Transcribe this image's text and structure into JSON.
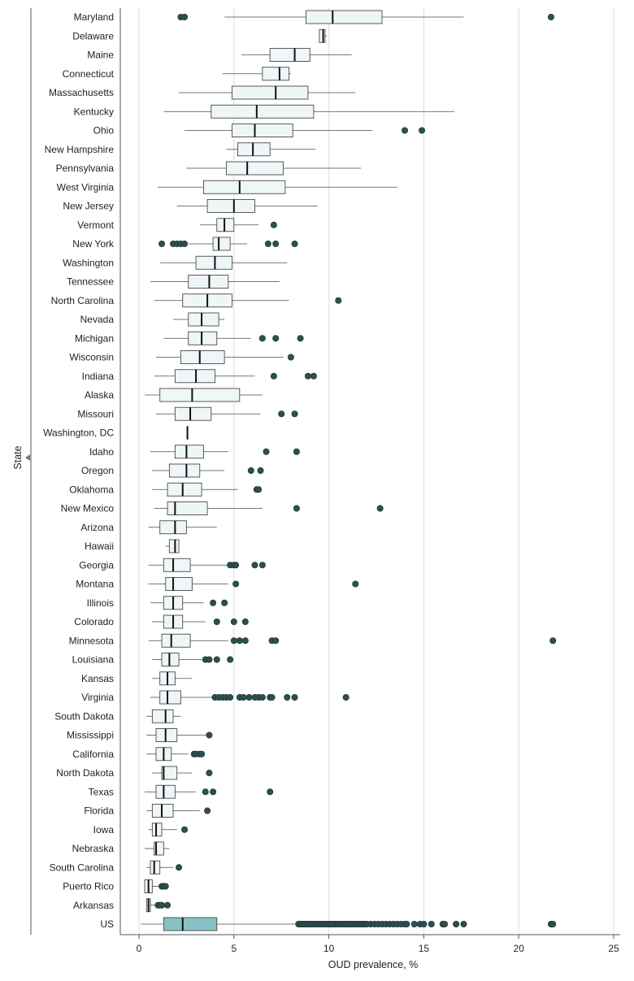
{
  "chart_data": {
    "type": "boxplot",
    "orientation": "horizontal",
    "xlabel": "OUD prevalence, %",
    "ylabel": "State",
    "xlim": [
      0,
      25
    ],
    "xticks": [
      0,
      5,
      10,
      15,
      20,
      25
    ],
    "grid": "vertical",
    "colors": {
      "box": "#eef6f7",
      "box_highlight": "#86c2c4",
      "outlier": "#2e4f4f",
      "stroke": "#4a4a4a"
    },
    "rows": [
      {
        "state": "Maryland",
        "wl": 4.5,
        "q1": 8.8,
        "median": 10.2,
        "q3": 12.8,
        "wh": 17.1,
        "outliers": [
          2.2,
          2.4,
          21.7
        ]
      },
      {
        "state": "Delaware",
        "wl": 9.5,
        "q1": 9.5,
        "median": 9.7,
        "q3": 9.8,
        "wh": 9.9,
        "outliers": []
      },
      {
        "state": "Maine",
        "wl": 5.4,
        "q1": 6.9,
        "median": 8.2,
        "q3": 9.0,
        "wh": 11.2,
        "outliers": []
      },
      {
        "state": "Connecticut",
        "wl": 4.4,
        "q1": 6.5,
        "median": 7.4,
        "q3": 7.9,
        "wh": 8.0,
        "outliers": []
      },
      {
        "state": "Massachusetts",
        "wl": 2.1,
        "q1": 4.9,
        "median": 7.2,
        "q3": 8.9,
        "wh": 11.4,
        "outliers": []
      },
      {
        "state": "Kentucky",
        "wl": 1.3,
        "q1": 3.8,
        "median": 6.2,
        "q3": 9.2,
        "wh": 16.6,
        "outliers": []
      },
      {
        "state": "Ohio",
        "wl": 2.4,
        "q1": 4.9,
        "median": 6.1,
        "q3": 8.1,
        "wh": 12.3,
        "outliers": [
          14.0,
          14.9
        ]
      },
      {
        "state": "New Hampshire",
        "wl": 4.6,
        "q1": 5.2,
        "median": 6.0,
        "q3": 6.9,
        "wh": 9.3,
        "outliers": []
      },
      {
        "state": "Pennsylvania",
        "wl": 2.5,
        "q1": 4.6,
        "median": 5.7,
        "q3": 7.6,
        "wh": 11.7,
        "outliers": []
      },
      {
        "state": "West Virginia",
        "wl": 1.0,
        "q1": 3.4,
        "median": 5.3,
        "q3": 7.7,
        "wh": 13.6,
        "outliers": []
      },
      {
        "state": "New Jersey",
        "wl": 2.0,
        "q1": 3.6,
        "median": 5.0,
        "q3": 6.1,
        "wh": 9.4,
        "outliers": []
      },
      {
        "state": "Vermont",
        "wl": 3.2,
        "q1": 4.1,
        "median": 4.5,
        "q3": 5.0,
        "wh": 6.3,
        "outliers": [
          7.1
        ]
      },
      {
        "state": "New York",
        "wl": 2.6,
        "q1": 3.9,
        "median": 4.2,
        "q3": 4.8,
        "wh": 5.7,
        "outliers": [
          1.2,
          1.8,
          2.0,
          2.2,
          2.4,
          6.8,
          7.2,
          8.2
        ]
      },
      {
        "state": "Washington",
        "wl": 1.1,
        "q1": 3.0,
        "median": 4.0,
        "q3": 4.9,
        "wh": 7.8,
        "outliers": []
      },
      {
        "state": "Tennessee",
        "wl": 0.6,
        "q1": 2.6,
        "median": 3.7,
        "q3": 4.7,
        "wh": 7.4,
        "outliers": []
      },
      {
        "state": "North Carolina",
        "wl": 0.8,
        "q1": 2.3,
        "median": 3.6,
        "q3": 4.9,
        "wh": 7.9,
        "outliers": [
          10.5
        ]
      },
      {
        "state": "Nevada",
        "wl": 1.8,
        "q1": 2.6,
        "median": 3.3,
        "q3": 4.2,
        "wh": 4.5,
        "outliers": []
      },
      {
        "state": "Michigan",
        "wl": 1.3,
        "q1": 2.6,
        "median": 3.3,
        "q3": 4.1,
        "wh": 5.9,
        "outliers": [
          6.5,
          7.2,
          8.5
        ]
      },
      {
        "state": "Wisconsin",
        "wl": 0.9,
        "q1": 2.2,
        "median": 3.2,
        "q3": 4.5,
        "wh": 7.6,
        "outliers": [
          8.0
        ]
      },
      {
        "state": "Indiana",
        "wl": 0.8,
        "q1": 1.9,
        "median": 3.0,
        "q3": 4.0,
        "wh": 6.1,
        "outliers": [
          7.1,
          8.9,
          9.2
        ]
      },
      {
        "state": "Alaska",
        "wl": 0.3,
        "q1": 1.1,
        "median": 2.8,
        "q3": 5.3,
        "wh": 6.5,
        "outliers": []
      },
      {
        "state": "Missouri",
        "wl": 0.9,
        "q1": 1.9,
        "median": 2.7,
        "q3": 3.8,
        "wh": 6.4,
        "outliers": [
          7.5,
          8.2
        ]
      },
      {
        "state": "Washington, DC",
        "wl": 2.55,
        "q1": 2.55,
        "median": 2.55,
        "q3": 2.55,
        "wh": 2.55,
        "outliers": []
      },
      {
        "state": "Idaho",
        "wl": 0.6,
        "q1": 1.9,
        "median": 2.5,
        "q3": 3.4,
        "wh": 4.7,
        "outliers": [
          6.7,
          8.3
        ]
      },
      {
        "state": "Oregon",
        "wl": 0.7,
        "q1": 1.6,
        "median": 2.5,
        "q3": 3.2,
        "wh": 4.5,
        "outliers": [
          5.9,
          6.4
        ]
      },
      {
        "state": "Oklahoma",
        "wl": 0.7,
        "q1": 1.5,
        "median": 2.3,
        "q3": 3.3,
        "wh": 5.2,
        "outliers": [
          6.2,
          6.3
        ]
      },
      {
        "state": "New Mexico",
        "wl": 0.8,
        "q1": 1.5,
        "median": 1.9,
        "q3": 3.6,
        "wh": 6.5,
        "outliers": [
          8.3,
          12.7
        ]
      },
      {
        "state": "Arizona",
        "wl": 0.5,
        "q1": 1.1,
        "median": 1.9,
        "q3": 2.5,
        "wh": 4.1,
        "outliers": []
      },
      {
        "state": "Hawaii",
        "wl": 1.4,
        "q1": 1.6,
        "median": 1.9,
        "q3": 2.1,
        "wh": 2.1,
        "outliers": []
      },
      {
        "state": "Georgia",
        "wl": 0.5,
        "q1": 1.3,
        "median": 1.8,
        "q3": 2.7,
        "wh": 4.7,
        "outliers": [
          4.8,
          5.0,
          5.1,
          6.1,
          6.5
        ]
      },
      {
        "state": "Montana",
        "wl": 0.5,
        "q1": 1.4,
        "median": 1.8,
        "q3": 2.8,
        "wh": 4.7,
        "outliers": [
          5.1,
          11.4
        ]
      },
      {
        "state": "Illinois",
        "wl": 0.6,
        "q1": 1.3,
        "median": 1.8,
        "q3": 2.3,
        "wh": 3.4,
        "outliers": [
          3.9,
          4.5
        ]
      },
      {
        "state": "Colorado",
        "wl": 0.7,
        "q1": 1.3,
        "median": 1.8,
        "q3": 2.3,
        "wh": 3.5,
        "outliers": [
          4.1,
          5.0,
          5.6
        ]
      },
      {
        "state": "Minnesota",
        "wl": 0.5,
        "q1": 1.2,
        "median": 1.7,
        "q3": 2.7,
        "wh": 4.7,
        "outliers": [
          5.0,
          5.3,
          5.6,
          7.0,
          7.2,
          21.8
        ]
      },
      {
        "state": "Louisiana",
        "wl": 0.7,
        "q1": 1.2,
        "median": 1.6,
        "q3": 2.1,
        "wh": 3.3,
        "outliers": [
          3.5,
          3.7,
          4.1,
          4.8
        ]
      },
      {
        "state": "Kansas",
        "wl": 0.7,
        "q1": 1.1,
        "median": 1.5,
        "q3": 1.9,
        "wh": 2.8,
        "outliers": []
      },
      {
        "state": "Virginia",
        "wl": 0.6,
        "q1": 1.1,
        "median": 1.5,
        "q3": 2.2,
        "wh": 3.9,
        "outliers": [
          4.0,
          4.2,
          4.4,
          4.6,
          4.8,
          5.3,
          5.5,
          5.8,
          6.1,
          6.3,
          6.5,
          6.9,
          7.0,
          7.8,
          8.2,
          10.9
        ]
      },
      {
        "state": "South Dakota",
        "wl": 0.4,
        "q1": 0.7,
        "median": 1.4,
        "q3": 1.8,
        "wh": 2.2,
        "outliers": []
      },
      {
        "state": "Mississippi",
        "wl": 0.4,
        "q1": 0.9,
        "median": 1.4,
        "q3": 2.0,
        "wh": 3.6,
        "outliers": [
          3.7
        ]
      },
      {
        "state": "California",
        "wl": 0.4,
        "q1": 0.9,
        "median": 1.3,
        "q3": 1.7,
        "wh": 2.6,
        "outliers": [
          2.9,
          3.0,
          3.2,
          3.3
        ]
      },
      {
        "state": "North Dakota",
        "wl": 0.7,
        "q1": 1.2,
        "median": 1.3,
        "q3": 2.0,
        "wh": 2.8,
        "outliers": [
          3.7
        ]
      },
      {
        "state": "Texas",
        "wl": 0.3,
        "q1": 0.9,
        "median": 1.3,
        "q3": 1.9,
        "wh": 3.0,
        "outliers": [
          3.5,
          3.9,
          6.9
        ]
      },
      {
        "state": "Florida",
        "wl": 0.4,
        "q1": 0.7,
        "median": 1.2,
        "q3": 1.8,
        "wh": 3.2,
        "outliers": [
          3.6
        ]
      },
      {
        "state": "Iowa",
        "wl": 0.5,
        "q1": 0.7,
        "median": 0.9,
        "q3": 1.2,
        "wh": 2.0,
        "outliers": [
          2.4
        ]
      },
      {
        "state": "Nebraska",
        "wl": 0.3,
        "q1": 0.8,
        "median": 0.9,
        "q3": 1.3,
        "wh": 1.6,
        "outliers": []
      },
      {
        "state": "South Carolina",
        "wl": 0.4,
        "q1": 0.6,
        "median": 0.8,
        "q3": 1.1,
        "wh": 1.8,
        "outliers": [
          2.1
        ]
      },
      {
        "state": "Puerto Rico",
        "wl": 0.3,
        "q1": 0.3,
        "median": 0.5,
        "q3": 0.7,
        "wh": 1.1,
        "outliers": [
          1.2,
          1.3,
          1.4
        ]
      },
      {
        "state": "Arkansas",
        "wl": 0.4,
        "q1": 0.4,
        "median": 0.5,
        "q3": 0.6,
        "wh": 0.9,
        "outliers": [
          1.0,
          1.1,
          1.2,
          1.5
        ]
      },
      {
        "state": "US",
        "wl": 0.1,
        "q1": 1.3,
        "median": 2.3,
        "q3": 4.1,
        "wh": 8.2,
        "highlight": true,
        "outliers": [
          8.4,
          8.5,
          8.6,
          8.7,
          8.8,
          8.9,
          9.0,
          9.1,
          9.2,
          9.3,
          9.4,
          9.5,
          9.6,
          9.7,
          9.8,
          9.9,
          10.0,
          10.1,
          10.2,
          10.3,
          10.4,
          10.5,
          10.6,
          10.7,
          10.8,
          10.9,
          11.0,
          11.1,
          11.2,
          11.3,
          11.4,
          11.5,
          11.6,
          11.7,
          11.8,
          11.9,
          12.0,
          12.2,
          12.4,
          12.6,
          12.8,
          13.0,
          13.2,
          13.4,
          13.6,
          13.8,
          14.0,
          14.1,
          14.5,
          14.8,
          15.0,
          15.4,
          16.0,
          16.1,
          16.7,
          17.1,
          21.7,
          21.8
        ]
      }
    ]
  }
}
